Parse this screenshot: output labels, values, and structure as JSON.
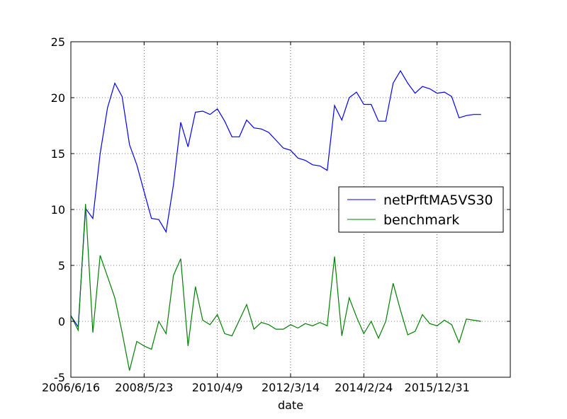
{
  "chart_data": {
    "type": "line",
    "xlabel": "date",
    "ylabel": "",
    "ylim": [
      -5,
      25
    ],
    "yticks": [
      -5,
      0,
      5,
      10,
      15,
      20,
      25
    ],
    "xlim": [
      0,
      60
    ],
    "xtick_positions": [
      0,
      10,
      20,
      30,
      40,
      50
    ],
    "xtick_labels": [
      "2006/6/16",
      "2008/5/23",
      "2010/4/9",
      "2012/3/14",
      "2014/2/24",
      "2015/12/31"
    ],
    "grid": true,
    "legend_position": "center-right",
    "series": [
      {
        "name": "netPrftMA5VS30",
        "color": "#0000ff",
        "x": [
          0,
          1,
          2,
          3,
          4,
          5,
          6,
          7,
          8,
          9,
          10,
          11,
          12,
          13,
          14,
          15,
          16,
          17,
          18,
          19,
          20,
          21,
          22,
          23,
          24,
          25,
          26,
          27,
          28,
          29,
          30,
          31,
          32,
          33,
          34,
          35,
          36,
          37,
          38,
          39,
          40,
          41,
          42,
          43,
          44,
          45,
          46,
          47,
          48,
          49,
          50,
          51,
          52,
          53,
          54,
          55,
          56
        ],
        "values": [
          0.5,
          -0.5,
          10.1,
          9.2,
          15.0,
          19.1,
          21.3,
          20.1,
          15.8,
          14.0,
          11.6,
          9.2,
          9.1,
          8.0,
          12.2,
          17.8,
          15.6,
          18.7,
          18.8,
          18.5,
          19.0,
          17.9,
          16.5,
          16.5,
          18.0,
          17.3,
          17.2,
          16.9,
          16.2,
          15.5,
          15.3,
          14.6,
          14.4,
          14.0,
          13.9,
          13.5,
          19.3,
          18.0,
          20.0,
          20.5,
          19.4,
          19.4,
          17.9,
          17.9,
          21.3,
          22.4,
          21.3,
          20.4,
          21.0,
          20.8,
          20.4,
          20.5,
          20.1,
          18.2,
          18.4,
          18.5,
          18.5
        ]
      },
      {
        "name": "benchmark",
        "color": "#008000",
        "x": [
          0,
          1,
          2,
          3,
          4,
          5,
          6,
          7,
          8,
          9,
          10,
          11,
          12,
          13,
          14,
          15,
          16,
          17,
          18,
          19,
          20,
          21,
          22,
          23,
          24,
          25,
          26,
          27,
          28,
          29,
          30,
          31,
          32,
          33,
          34,
          35,
          36,
          37,
          38,
          39,
          40,
          41,
          42,
          43,
          44,
          45,
          46,
          47,
          48,
          49,
          50,
          51,
          52,
          53,
          54,
          55,
          56
        ],
        "values": [
          0.5,
          -0.8,
          10.5,
          -1.0,
          5.9,
          4.0,
          2.1,
          -1.0,
          -4.4,
          -1.8,
          -2.2,
          -2.5,
          0.0,
          -1.1,
          4.1,
          5.6,
          -2.2,
          3.1,
          0.1,
          -0.3,
          0.6,
          -1.1,
          -1.3,
          0.1,
          1.5,
          -0.7,
          -0.1,
          -0.3,
          -0.7,
          -0.7,
          -0.3,
          -0.6,
          -0.2,
          -0.4,
          -0.1,
          -0.4,
          5.8,
          -1.3,
          2.1,
          0.4,
          -1.1,
          0.0,
          -1.5,
          0.0,
          3.4,
          1.0,
          -1.2,
          -0.9,
          0.6,
          -0.2,
          -0.4,
          0.1,
          -0.3,
          -1.9,
          0.2,
          0.1,
          0.0
        ]
      }
    ]
  }
}
